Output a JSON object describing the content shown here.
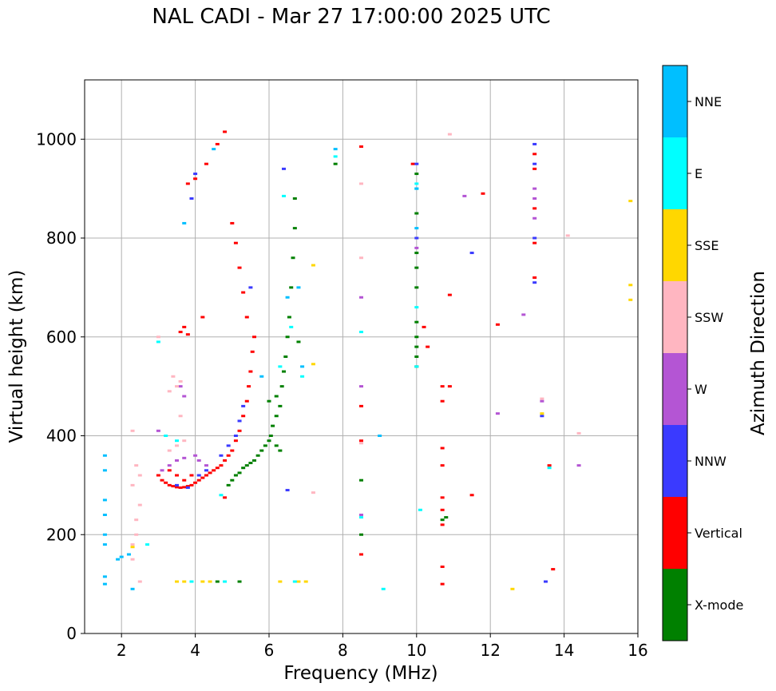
{
  "chart_data": {
    "type": "scatter",
    "title": "NAL CADI - Mar 27 17:00:00 2025 UTC",
    "xlabel": "Frequency (MHz)",
    "ylabel": "Virtual height (km)",
    "xlim": [
      1,
      16
    ],
    "ylim": [
      0,
      1120
    ],
    "xticks": [
      2,
      4,
      6,
      8,
      10,
      12,
      14,
      16
    ],
    "yticks": [
      0,
      200,
      400,
      600,
      800,
      1000
    ],
    "grid": true,
    "colorbar": {
      "label": "Azimuth Direction",
      "categories": [
        {
          "name": "X-mode",
          "color": "#008000"
        },
        {
          "name": "Vertical",
          "color": "#ff0000"
        },
        {
          "name": "NNW",
          "color": "#3a3aff"
        },
        {
          "name": "W",
          "color": "#b455d4"
        },
        {
          "name": "SSW",
          "color": "#ffb6c1"
        },
        {
          "name": "SSE",
          "color": "#ffd700"
        },
        {
          "name": "E",
          "color": "#00ffff"
        },
        {
          "name": "NNE",
          "color": "#00bfff"
        }
      ]
    },
    "series": [
      {
        "name": "X-mode",
        "points": [
          [
            4.9,
            300
          ],
          [
            5.0,
            310
          ],
          [
            5.1,
            320
          ],
          [
            5.2,
            325
          ],
          [
            5.3,
            335
          ],
          [
            5.4,
            340
          ],
          [
            5.5,
            345
          ],
          [
            5.6,
            350
          ],
          [
            5.7,
            360
          ],
          [
            5.8,
            370
          ],
          [
            5.9,
            380
          ],
          [
            6.0,
            390
          ],
          [
            6.05,
            400
          ],
          [
            6.1,
            420
          ],
          [
            6.2,
            440
          ],
          [
            6.3,
            460
          ],
          [
            6.2,
            480
          ],
          [
            6.35,
            500
          ],
          [
            6.4,
            530
          ],
          [
            6.45,
            560
          ],
          [
            6.5,
            600
          ],
          [
            6.55,
            640
          ],
          [
            6.6,
            700
          ],
          [
            6.65,
            760
          ],
          [
            6.7,
            820
          ],
          [
            6.7,
            880
          ],
          [
            6.0,
            470
          ],
          [
            6.2,
            380
          ],
          [
            6.3,
            370
          ],
          [
            10.0,
            540
          ],
          [
            10.0,
            560
          ],
          [
            10.0,
            580
          ],
          [
            10.0,
            600
          ],
          [
            10.0,
            630
          ],
          [
            10.0,
            700
          ],
          [
            10.0,
            740
          ],
          [
            10.0,
            770
          ],
          [
            10.0,
            850
          ],
          [
            10.0,
            930
          ],
          [
            10.7,
            230
          ],
          [
            10.8,
            235
          ],
          [
            8.5,
            200
          ],
          [
            8.5,
            310
          ],
          [
            4.6,
            105
          ],
          [
            5.2,
            105
          ],
          [
            7.8,
            950
          ],
          [
            6.8,
            590
          ]
        ]
      },
      {
        "name": "Vertical",
        "points": [
          [
            3.0,
            320
          ],
          [
            3.1,
            310
          ],
          [
            3.2,
            305
          ],
          [
            3.3,
            300
          ],
          [
            3.4,
            298
          ],
          [
            3.5,
            296
          ],
          [
            3.6,
            295
          ],
          [
            3.7,
            296
          ],
          [
            3.8,
            298
          ],
          [
            3.9,
            300
          ],
          [
            4.0,
            305
          ],
          [
            4.1,
            310
          ],
          [
            4.2,
            315
          ],
          [
            4.3,
            320
          ],
          [
            4.4,
            325
          ],
          [
            4.5,
            330
          ],
          [
            4.6,
            335
          ],
          [
            4.7,
            340
          ],
          [
            4.8,
            350
          ],
          [
            4.9,
            360
          ],
          [
            5.0,
            370
          ],
          [
            5.1,
            390
          ],
          [
            5.2,
            410
          ],
          [
            5.3,
            440
          ],
          [
            5.4,
            470
          ],
          [
            5.45,
            500
          ],
          [
            5.5,
            530
          ],
          [
            5.55,
            570
          ],
          [
            5.6,
            600
          ],
          [
            5.4,
            640
          ],
          [
            5.3,
            690
          ],
          [
            5.2,
            740
          ],
          [
            5.1,
            790
          ],
          [
            5.0,
            830
          ],
          [
            3.3,
            330
          ],
          [
            3.5,
            320
          ],
          [
            3.7,
            310
          ],
          [
            3.9,
            320
          ],
          [
            3.6,
            610
          ],
          [
            3.7,
            620
          ],
          [
            3.8,
            605
          ],
          [
            4.2,
            640
          ],
          [
            3.8,
            910
          ],
          [
            4.0,
            920
          ],
          [
            4.3,
            950
          ],
          [
            4.6,
            990
          ],
          [
            4.8,
            1015
          ],
          [
            10.7,
            100
          ],
          [
            10.7,
            135
          ],
          [
            10.7,
            220
          ],
          [
            10.7,
            250
          ],
          [
            10.7,
            275
          ],
          [
            10.7,
            340
          ],
          [
            10.7,
            375
          ],
          [
            10.7,
            470
          ],
          [
            10.7,
            500
          ],
          [
            10.9,
            500
          ],
          [
            10.3,
            580
          ],
          [
            10.2,
            620
          ],
          [
            9.9,
            950
          ],
          [
            11.8,
            890
          ],
          [
            12.2,
            625
          ],
          [
            13.2,
            720
          ],
          [
            13.2,
            790
          ],
          [
            13.2,
            860
          ],
          [
            13.2,
            940
          ],
          [
            13.2,
            970
          ],
          [
            13.7,
            130
          ],
          [
            13.6,
            340
          ],
          [
            8.5,
            160
          ],
          [
            8.5,
            460
          ],
          [
            8.5,
            390
          ],
          [
            8.5,
            985
          ],
          [
            11.5,
            280
          ],
          [
            10.9,
            685
          ],
          [
            4.8,
            275
          ]
        ]
      },
      {
        "name": "NNW",
        "points": [
          [
            3.5,
            300
          ],
          [
            3.8,
            295
          ],
          [
            4.1,
            320
          ],
          [
            4.3,
            330
          ],
          [
            4.7,
            360
          ],
          [
            4.9,
            380
          ],
          [
            5.1,
            400
          ],
          [
            5.2,
            430
          ],
          [
            5.3,
            460
          ],
          [
            6.4,
            940
          ],
          [
            4.0,
            930
          ],
          [
            3.9,
            880
          ],
          [
            10.0,
            950
          ],
          [
            10.0,
            800
          ],
          [
            13.2,
            950
          ],
          [
            13.2,
            800
          ],
          [
            13.2,
            710
          ],
          [
            13.5,
            105
          ],
          [
            13.4,
            440
          ],
          [
            11.5,
            770
          ],
          [
            13.2,
            990
          ],
          [
            5.5,
            700
          ],
          [
            6.5,
            290
          ]
        ]
      },
      {
        "name": "W",
        "points": [
          [
            3.1,
            330
          ],
          [
            3.3,
            340
          ],
          [
            3.5,
            350
          ],
          [
            3.7,
            355
          ],
          [
            4.0,
            360
          ],
          [
            3.6,
            500
          ],
          [
            3.7,
            480
          ],
          [
            4.1,
            350
          ],
          [
            4.3,
            340
          ],
          [
            13.2,
            880
          ],
          [
            13.2,
            900
          ],
          [
            13.2,
            840
          ],
          [
            12.9,
            645
          ],
          [
            13.4,
            470
          ],
          [
            14.4,
            340
          ],
          [
            11.3,
            885
          ],
          [
            12.2,
            445
          ],
          [
            8.5,
            500
          ],
          [
            8.5,
            240
          ],
          [
            10.0,
            780
          ],
          [
            8.5,
            680
          ],
          [
            3.0,
            410
          ]
        ]
      },
      {
        "name": "SSW",
        "points": [
          [
            2.3,
            150
          ],
          [
            2.3,
            180
          ],
          [
            2.4,
            200
          ],
          [
            2.4,
            230
          ],
          [
            2.5,
            260
          ],
          [
            2.3,
            300
          ],
          [
            2.5,
            320
          ],
          [
            2.5,
            105
          ],
          [
            3.5,
            500
          ],
          [
            3.6,
            510
          ],
          [
            3.4,
            520
          ],
          [
            3.3,
            490
          ],
          [
            3.6,
            440
          ],
          [
            3.3,
            370
          ],
          [
            3.5,
            380
          ],
          [
            3.7,
            390
          ],
          [
            2.3,
            410
          ],
          [
            8.5,
            760
          ],
          [
            8.5,
            910
          ],
          [
            8.5,
            385
          ],
          [
            14.1,
            805
          ],
          [
            14.4,
            405
          ],
          [
            13.4,
            475
          ],
          [
            10.9,
            1010
          ],
          [
            7.2,
            285
          ],
          [
            3.0,
            600
          ],
          [
            2.4,
            340
          ]
        ]
      },
      {
        "name": "SSE",
        "points": [
          [
            3.5,
            105
          ],
          [
            3.7,
            105
          ],
          [
            4.2,
            105
          ],
          [
            4.4,
            105
          ],
          [
            6.3,
            105
          ],
          [
            6.8,
            105
          ],
          [
            7.0,
            105
          ],
          [
            12.6,
            90
          ],
          [
            13.4,
            445
          ],
          [
            15.8,
            875
          ],
          [
            15.8,
            705
          ],
          [
            15.8,
            675
          ],
          [
            2.3,
            175
          ],
          [
            7.2,
            545
          ],
          [
            7.2,
            745
          ]
        ]
      },
      {
        "name": "E",
        "points": [
          [
            3.9,
            105
          ],
          [
            4.8,
            105
          ],
          [
            6.7,
            105
          ],
          [
            3.2,
            400
          ],
          [
            3.5,
            390
          ],
          [
            4.7,
            280
          ],
          [
            6.9,
            520
          ],
          [
            6.6,
            620
          ],
          [
            6.4,
            885
          ],
          [
            10.0,
            900
          ],
          [
            10.0,
            910
          ],
          [
            10.0,
            660
          ],
          [
            10.0,
            540
          ],
          [
            10.1,
            250
          ],
          [
            9.1,
            90
          ],
          [
            8.5,
            610
          ],
          [
            8.5,
            235
          ],
          [
            7.8,
            965
          ],
          [
            3.0,
            590
          ],
          [
            13.6,
            335
          ],
          [
            2.7,
            180
          ],
          [
            6.3,
            540
          ]
        ]
      },
      {
        "name": "NNE",
        "points": [
          [
            1.55,
            100
          ],
          [
            1.55,
            115
          ],
          [
            1.55,
            180
          ],
          [
            1.55,
            200
          ],
          [
            1.55,
            240
          ],
          [
            1.55,
            270
          ],
          [
            1.55,
            330
          ],
          [
            1.55,
            360
          ],
          [
            1.9,
            150
          ],
          [
            2.0,
            155
          ],
          [
            2.2,
            160
          ],
          [
            2.3,
            90
          ],
          [
            3.7,
            830
          ],
          [
            4.5,
            980
          ],
          [
            7.8,
            980
          ],
          [
            10.0,
            820
          ],
          [
            10.0,
            900
          ],
          [
            5.8,
            520
          ],
          [
            6.5,
            680
          ],
          [
            6.8,
            700
          ],
          [
            6.9,
            540
          ],
          [
            9.0,
            400
          ]
        ]
      }
    ]
  }
}
